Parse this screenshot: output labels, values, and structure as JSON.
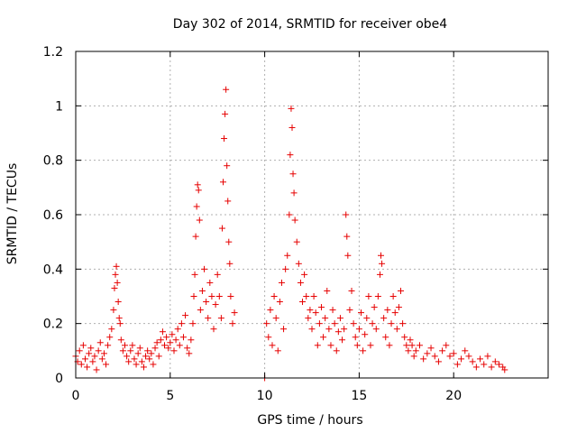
{
  "chart_data": {
    "type": "scatter",
    "title": "Day 302 of 2014, SRMTID for receiver obe4",
    "xlabel": "GPS time / hours",
    "ylabel": "SRMTID / TECUs",
    "xlim": [
      0,
      25
    ],
    "ylim": [
      0,
      1.2
    ],
    "xticks": [
      0,
      5,
      10,
      15,
      20
    ],
    "xtick_labels": [
      "0",
      "5",
      "10",
      "15",
      "20"
    ],
    "yticks": [
      0,
      0.2,
      0.4,
      0.6,
      0.8,
      1.0,
      1.2
    ],
    "ytick_labels": [
      "0",
      "0.2",
      "0.4",
      "0.6",
      "0.8",
      "1",
      "1.2"
    ],
    "grid": true,
    "marker": "+",
    "series": [
      {
        "name": "SRMTID",
        "color": "#e60000",
        "points": [
          [
            0.0,
            0.08
          ],
          [
            0.1,
            0.06
          ],
          [
            0.2,
            0.1
          ],
          [
            0.3,
            0.05
          ],
          [
            0.4,
            0.12
          ],
          [
            0.5,
            0.07
          ],
          [
            0.6,
            0.04
          ],
          [
            0.7,
            0.09
          ],
          [
            0.8,
            0.11
          ],
          [
            0.9,
            0.06
          ],
          [
            1.0,
            0.08
          ],
          [
            1.1,
            0.03
          ],
          [
            1.2,
            0.1
          ],
          [
            1.3,
            0.13
          ],
          [
            1.4,
            0.07
          ],
          [
            1.5,
            0.09
          ],
          [
            1.6,
            0.05
          ],
          [
            1.7,
            0.12
          ],
          [
            1.8,
            0.15
          ],
          [
            1.9,
            0.18
          ],
          [
            2.0,
            0.25
          ],
          [
            2.05,
            0.33
          ],
          [
            2.1,
            0.38
          ],
          [
            2.15,
            0.41
          ],
          [
            2.2,
            0.35
          ],
          [
            2.25,
            0.28
          ],
          [
            2.3,
            0.22
          ],
          [
            2.35,
            0.2
          ],
          [
            2.4,
            0.14
          ],
          [
            2.5,
            0.1
          ],
          [
            2.6,
            0.12
          ],
          [
            2.7,
            0.08
          ],
          [
            2.8,
            0.06
          ],
          [
            2.9,
            0.1
          ],
          [
            3.0,
            0.12
          ],
          [
            3.1,
            0.07
          ],
          [
            3.2,
            0.05
          ],
          [
            3.3,
            0.09
          ],
          [
            3.4,
            0.11
          ],
          [
            3.5,
            0.06
          ],
          [
            3.6,
            0.04
          ],
          [
            3.7,
            0.08
          ],
          [
            3.8,
            0.1
          ],
          [
            3.9,
            0.07
          ],
          [
            4.0,
            0.09
          ],
          [
            4.1,
            0.05
          ],
          [
            4.2,
            0.11
          ],
          [
            4.3,
            0.13
          ],
          [
            4.4,
            0.08
          ],
          [
            4.5,
            0.14
          ],
          [
            4.6,
            0.17
          ],
          [
            4.7,
            0.12
          ],
          [
            4.8,
            0.15
          ],
          [
            4.9,
            0.11
          ],
          [
            5.0,
            0.13
          ],
          [
            5.1,
            0.16
          ],
          [
            5.2,
            0.1
          ],
          [
            5.3,
            0.14
          ],
          [
            5.4,
            0.18
          ],
          [
            5.5,
            0.12
          ],
          [
            5.6,
            0.2
          ],
          [
            5.7,
            0.15
          ],
          [
            5.8,
            0.23
          ],
          [
            5.9,
            0.11
          ],
          [
            6.0,
            0.09
          ],
          [
            6.1,
            0.14
          ],
          [
            6.2,
            0.2
          ],
          [
            6.25,
            0.3
          ],
          [
            6.3,
            0.38
          ],
          [
            6.35,
            0.52
          ],
          [
            6.4,
            0.63
          ],
          [
            6.45,
            0.71
          ],
          [
            6.5,
            0.69
          ],
          [
            6.55,
            0.58
          ],
          [
            6.6,
            0.25
          ],
          [
            6.7,
            0.32
          ],
          [
            6.8,
            0.4
          ],
          [
            6.9,
            0.28
          ],
          [
            7.0,
            0.22
          ],
          [
            7.1,
            0.35
          ],
          [
            7.2,
            0.3
          ],
          [
            7.3,
            0.18
          ],
          [
            7.4,
            0.27
          ],
          [
            7.5,
            0.38
          ],
          [
            7.6,
            0.3
          ],
          [
            7.7,
            0.22
          ],
          [
            7.75,
            0.55
          ],
          [
            7.8,
            0.72
          ],
          [
            7.85,
            0.88
          ],
          [
            7.9,
            0.97
          ],
          [
            7.95,
            1.06
          ],
          [
            8.0,
            0.78
          ],
          [
            8.05,
            0.65
          ],
          [
            8.1,
            0.5
          ],
          [
            8.15,
            0.42
          ],
          [
            8.2,
            0.3
          ],
          [
            8.3,
            0.2
          ],
          [
            8.4,
            0.24
          ],
          [
            10.0,
            0.0
          ],
          [
            10.1,
            0.2
          ],
          [
            10.2,
            0.15
          ],
          [
            10.3,
            0.25
          ],
          [
            10.4,
            0.12
          ],
          [
            10.5,
            0.3
          ],
          [
            10.6,
            0.22
          ],
          [
            10.7,
            0.1
          ],
          [
            10.8,
            0.28
          ],
          [
            10.9,
            0.35
          ],
          [
            11.0,
            0.18
          ],
          [
            11.1,
            0.4
          ],
          [
            11.2,
            0.45
          ],
          [
            11.3,
            0.6
          ],
          [
            11.35,
            0.82
          ],
          [
            11.4,
            0.99
          ],
          [
            11.45,
            0.92
          ],
          [
            11.5,
            0.75
          ],
          [
            11.55,
            0.68
          ],
          [
            11.6,
            0.58
          ],
          [
            11.7,
            0.5
          ],
          [
            11.8,
            0.42
          ],
          [
            11.9,
            0.35
          ],
          [
            12.0,
            0.28
          ],
          [
            12.1,
            0.38
          ],
          [
            12.2,
            0.3
          ],
          [
            12.3,
            0.22
          ],
          [
            12.4,
            0.25
          ],
          [
            12.5,
            0.18
          ],
          [
            12.6,
            0.3
          ],
          [
            12.7,
            0.24
          ],
          [
            12.8,
            0.12
          ],
          [
            12.9,
            0.2
          ],
          [
            13.0,
            0.26
          ],
          [
            13.1,
            0.15
          ],
          [
            13.2,
            0.22
          ],
          [
            13.3,
            0.32
          ],
          [
            13.4,
            0.18
          ],
          [
            13.5,
            0.12
          ],
          [
            13.6,
            0.25
          ],
          [
            13.7,
            0.2
          ],
          [
            13.8,
            0.1
          ],
          [
            13.9,
            0.17
          ],
          [
            14.0,
            0.22
          ],
          [
            14.1,
            0.14
          ],
          [
            14.2,
            0.18
          ],
          [
            14.3,
            0.6
          ],
          [
            14.35,
            0.52
          ],
          [
            14.4,
            0.45
          ],
          [
            14.5,
            0.25
          ],
          [
            14.6,
            0.32
          ],
          [
            14.7,
            0.2
          ],
          [
            14.8,
            0.15
          ],
          [
            14.9,
            0.12
          ],
          [
            15.0,
            0.18
          ],
          [
            15.1,
            0.24
          ],
          [
            15.2,
            0.1
          ],
          [
            15.3,
            0.16
          ],
          [
            15.4,
            0.22
          ],
          [
            15.5,
            0.3
          ],
          [
            15.6,
            0.12
          ],
          [
            15.7,
            0.2
          ],
          [
            15.8,
            0.26
          ],
          [
            15.9,
            0.18
          ],
          [
            16.0,
            0.3
          ],
          [
            16.1,
            0.38
          ],
          [
            16.15,
            0.45
          ],
          [
            16.2,
            0.42
          ],
          [
            16.3,
            0.22
          ],
          [
            16.4,
            0.15
          ],
          [
            16.5,
            0.25
          ],
          [
            16.6,
            0.12
          ],
          [
            16.7,
            0.2
          ],
          [
            16.8,
            0.3
          ],
          [
            16.9,
            0.24
          ],
          [
            17.0,
            0.18
          ],
          [
            17.1,
            0.26
          ],
          [
            17.2,
            0.32
          ],
          [
            17.3,
            0.2
          ],
          [
            17.4,
            0.15
          ],
          [
            17.5,
            0.12
          ],
          [
            17.6,
            0.1
          ],
          [
            17.7,
            0.14
          ],
          [
            17.8,
            0.12
          ],
          [
            17.9,
            0.08
          ],
          [
            18.0,
            0.1
          ],
          [
            18.2,
            0.12
          ],
          [
            18.4,
            0.07
          ],
          [
            18.6,
            0.09
          ],
          [
            18.8,
            0.11
          ],
          [
            19.0,
            0.08
          ],
          [
            19.2,
            0.06
          ],
          [
            19.4,
            0.1
          ],
          [
            19.6,
            0.12
          ],
          [
            19.8,
            0.08
          ],
          [
            20.0,
            0.09
          ],
          [
            20.2,
            0.05
          ],
          [
            20.4,
            0.07
          ],
          [
            20.6,
            0.1
          ],
          [
            20.8,
            0.08
          ],
          [
            21.0,
            0.06
          ],
          [
            21.2,
            0.04
          ],
          [
            21.4,
            0.07
          ],
          [
            21.6,
            0.05
          ],
          [
            21.8,
            0.08
          ],
          [
            22.0,
            0.04
          ],
          [
            22.2,
            0.06
          ],
          [
            22.4,
            0.05
          ],
          [
            22.6,
            0.04
          ],
          [
            22.7,
            0.03
          ]
        ]
      }
    ]
  }
}
